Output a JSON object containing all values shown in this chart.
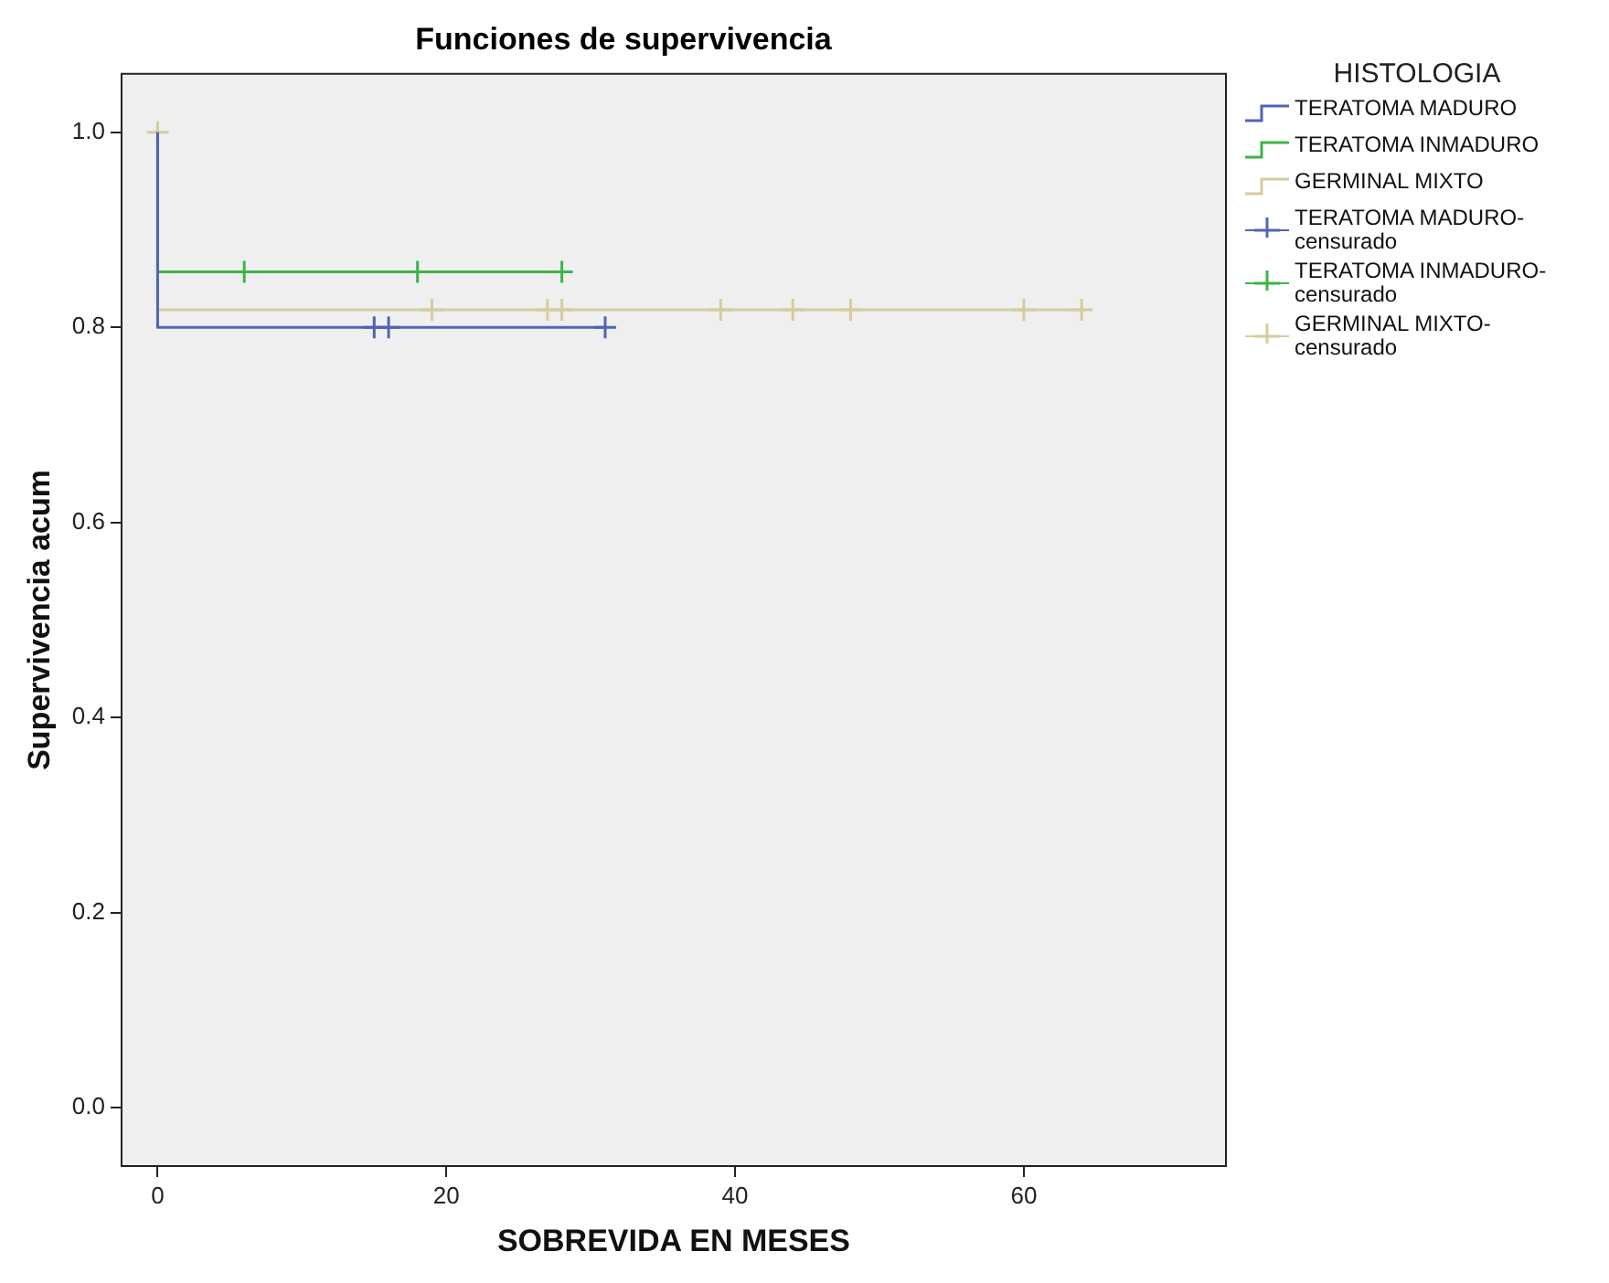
{
  "chart_data": {
    "type": "step",
    "title": "Funciones de supervivencia",
    "xlabel": "SOBREVIDA EN MESES",
    "ylabel": "Supervivencia acum",
    "legend_title": "HISTOLOGIA",
    "legend": "right",
    "grid": false,
    "xlim": [
      -2.5,
      74
    ],
    "xticks": [
      0,
      20,
      40,
      60
    ],
    "ylim": [
      -0.06,
      1.06
    ],
    "yticks": [
      {
        "value": 0,
        "label": "0.0"
      },
      {
        "value": 0.2,
        "label": "0.2"
      },
      {
        "value": 0.4,
        "label": "0.4"
      },
      {
        "value": 0.6,
        "label": "0.6"
      },
      {
        "value": 0.8,
        "label": "0.8"
      },
      {
        "value": 1,
        "label": "1.0"
      }
    ],
    "series": [
      {
        "name": "TERATOMA MADURO",
        "color": "#5064b4",
        "marker": "none",
        "x": [
          0,
          0,
          31
        ],
        "values": [
          1,
          0.8,
          0.8
        ]
      },
      {
        "name": "TERATOMA INMADURO",
        "color": "#3cb44a",
        "marker": "none",
        "x": [
          0,
          0,
          28
        ],
        "values": [
          1,
          0.857,
          0.857
        ]
      },
      {
        "name": "GERMINAL MIXTO",
        "color": "#d6cc9c",
        "marker": "none",
        "x": [
          0,
          0,
          64
        ],
        "values": [
          1,
          0.818,
          0.818
        ]
      },
      {
        "name": "TERATOMA MADURO-censurado",
        "type": "scatter",
        "color": "#5064b4",
        "marker": "cross",
        "x": [
          15,
          16,
          31
        ],
        "values": [
          0.8,
          0.8,
          0.8
        ]
      },
      {
        "name": "TERATOMA INMADURO-censurado",
        "type": "scatter",
        "color": "#3cb44a",
        "marker": "cross",
        "x": [
          6,
          18,
          28
        ],
        "values": [
          0.857,
          0.857,
          0.857
        ]
      },
      {
        "name": "GERMINAL MIXTO-censurado",
        "type": "scatter",
        "color": "#d6cc9c",
        "marker": "cross",
        "x": [
          0,
          19,
          27,
          28,
          39,
          44,
          48,
          60,
          64
        ],
        "values": [
          1,
          0.818,
          0.818,
          0.818,
          0.818,
          0.818,
          0.818,
          0.818,
          0.818
        ]
      }
    ]
  }
}
